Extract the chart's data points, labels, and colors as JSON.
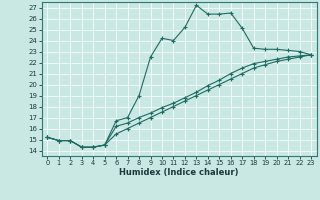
{
  "xlabel": "Humidex (Indice chaleur)",
  "xlim": [
    -0.5,
    23.5
  ],
  "ylim": [
    13.5,
    27.5
  ],
  "yticks": [
    14,
    15,
    16,
    17,
    18,
    19,
    20,
    21,
    22,
    23,
    24,
    25,
    26,
    27
  ],
  "xticks": [
    0,
    1,
    2,
    3,
    4,
    5,
    6,
    7,
    8,
    9,
    10,
    11,
    12,
    13,
    14,
    15,
    16,
    17,
    18,
    19,
    20,
    21,
    22,
    23
  ],
  "bg_color": "#c9e8e4",
  "line_color": "#1e6b62",
  "line1_x": [
    0,
    1,
    2,
    3,
    4,
    5,
    6,
    7,
    8,
    9,
    10,
    11,
    12,
    13,
    14,
    15,
    16,
    17,
    18,
    19,
    20,
    21,
    22,
    23
  ],
  "line1_y": [
    15.2,
    14.9,
    14.9,
    14.3,
    14.3,
    14.5,
    16.7,
    17.0,
    19.0,
    22.5,
    24.2,
    24.0,
    25.2,
    27.2,
    26.4,
    26.4,
    26.5,
    25.1,
    23.3,
    23.2,
    23.2,
    23.1,
    23.0,
    22.7
  ],
  "line2_x": [
    0,
    1,
    2,
    3,
    4,
    5,
    6,
    7,
    8,
    9,
    10,
    11,
    12,
    13,
    14,
    15,
    16,
    17,
    18,
    19,
    20,
    21,
    22,
    23
  ],
  "line2_y": [
    15.2,
    14.9,
    14.9,
    14.3,
    14.3,
    14.5,
    15.5,
    16.0,
    16.5,
    17.0,
    17.5,
    18.0,
    18.5,
    19.0,
    19.5,
    20.0,
    20.5,
    21.0,
    21.5,
    21.8,
    22.1,
    22.3,
    22.5,
    22.7
  ],
  "line3_x": [
    0,
    1,
    2,
    3,
    4,
    5,
    6,
    7,
    8,
    9,
    10,
    11,
    12,
    13,
    14,
    15,
    16,
    17,
    18,
    19,
    20,
    21,
    22,
    23
  ],
  "line3_y": [
    15.2,
    14.9,
    14.9,
    14.3,
    14.3,
    14.5,
    16.2,
    16.5,
    17.0,
    17.4,
    17.9,
    18.3,
    18.8,
    19.3,
    19.9,
    20.4,
    21.0,
    21.5,
    21.9,
    22.1,
    22.3,
    22.5,
    22.6,
    22.7
  ]
}
